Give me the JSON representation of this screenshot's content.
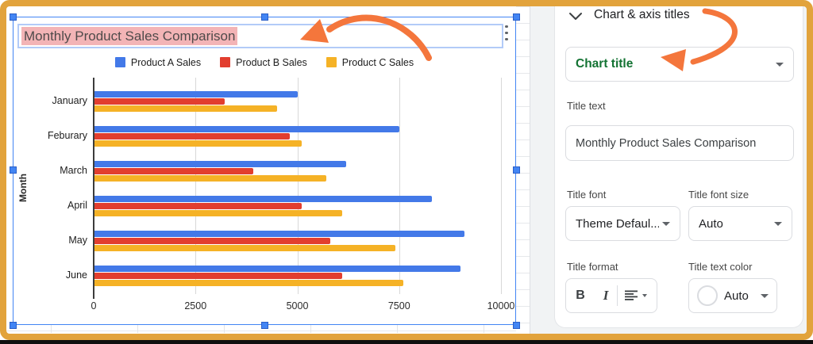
{
  "window": {
    "frame_color": "#E2A33C",
    "selection_color": "#4285F4",
    "annotation_arrow_color": "#F4763C"
  },
  "chart": {
    "title": "Monthly Product Sales Comparison",
    "title_highlight_color": "#F3B4B6",
    "menu_icon": "kebab-menu-icon",
    "chart_data": {
      "type": "bar",
      "orientation": "horizontal",
      "title": "Monthly Product Sales Comparison",
      "categories": [
        "January",
        "Feburary",
        "March",
        "April",
        "May",
        "June"
      ],
      "series": [
        {
          "name": "Product A Sales",
          "color": "#4379E8",
          "values": [
            5000,
            7500,
            6200,
            8300,
            9100,
            9000
          ]
        },
        {
          "name": "Product B Sales",
          "color": "#E23E2F",
          "values": [
            3200,
            4800,
            3900,
            5100,
            5800,
            6100
          ]
        },
        {
          "name": "Product C Sales",
          "color": "#F5B226",
          "values": [
            4500,
            5100,
            5700,
            6100,
            7400,
            7600
          ]
        }
      ],
      "xlabel": "",
      "ylabel": "Month",
      "xlim": [
        0,
        10000
      ],
      "xticks": [
        0,
        2500,
        5000,
        7500,
        10000
      ],
      "grid": true,
      "legend_position": "top"
    }
  },
  "panel": {
    "header": "Chart & axis titles",
    "collapse_icon": "chevron-down-icon",
    "section_dropdown": {
      "value": "Chart title",
      "value_color": "#137333",
      "caret_icon": "caret-down-icon"
    },
    "title_text": {
      "label": "Title text",
      "value": "Monthly Product Sales Comparison"
    },
    "title_font": {
      "label": "Title font",
      "value": "Theme Defaul...",
      "caret_icon": "caret-down-icon"
    },
    "title_font_size": {
      "label": "Title font size",
      "value": "Auto",
      "caret_icon": "caret-down-icon"
    },
    "title_format": {
      "label": "Title format",
      "bold_label": "B",
      "italic_label": "I",
      "align_icon": "align-left-icon"
    },
    "title_text_color": {
      "label": "Title text color",
      "value": "Auto",
      "swatch_icon": "color-circle-icon",
      "caret_icon": "caret-down-icon"
    }
  }
}
